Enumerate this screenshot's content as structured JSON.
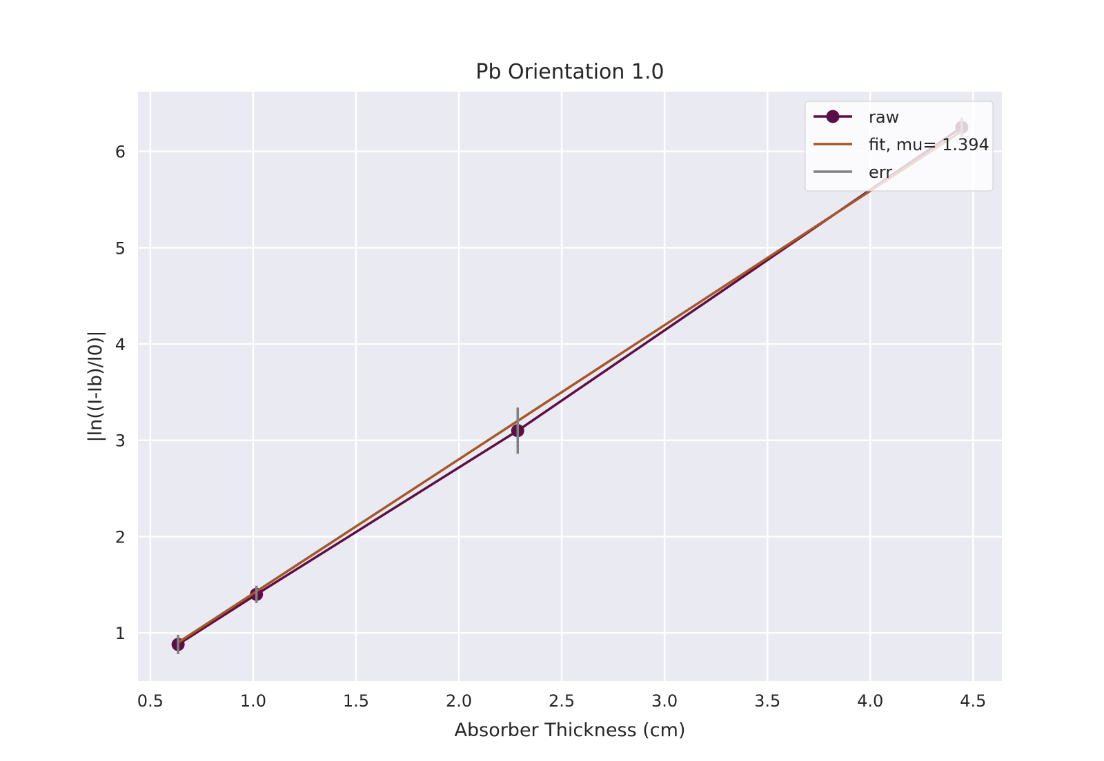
{
  "chart_data": {
    "type": "line",
    "title": "Pb Orientation 1.0",
    "xlabel": "Absorber Thickness (cm)",
    "ylabel": "|ln((I-Ib)/I0)|",
    "xlim": [
      0.44,
      4.64
    ],
    "ylim": [
      0.5,
      6.62
    ],
    "x_ticks": [
      0.5,
      1.0,
      1.5,
      2.0,
      2.5,
      3.0,
      3.5,
      4.0,
      4.5
    ],
    "x_tick_labels": [
      "0.5",
      "1.0",
      "1.5",
      "2.0",
      "2.5",
      "3.0",
      "3.5",
      "4.0",
      "4.5"
    ],
    "y_ticks": [
      1,
      2,
      3,
      4,
      5,
      6
    ],
    "y_tick_labels": [
      "1",
      "2",
      "3",
      "4",
      "5",
      "6"
    ],
    "grid": true,
    "legend_position": "top-right",
    "series": [
      {
        "name": "raw",
        "kind": "line-markers",
        "color": "#5c0f45",
        "x": [
          0.635,
          1.016,
          2.286,
          4.445
        ],
        "y": [
          0.88,
          1.4,
          3.1,
          6.25
        ]
      },
      {
        "name": "fit, mu= 1.394",
        "kind": "line",
        "color": "#a65628",
        "x": [
          0.635,
          4.445
        ],
        "y": [
          0.9,
          6.21
        ]
      },
      {
        "name": "err",
        "kind": "errorbar",
        "color": "#808080",
        "x": [
          0.635,
          1.016,
          2.286,
          4.445
        ],
        "y": [
          0.88,
          1.4,
          3.1,
          6.25
        ],
        "yerr": [
          0.1,
          0.09,
          0.24,
          0.1
        ]
      }
    ],
    "colors": {
      "background": "#ffffff",
      "plot_area": "#eaeaf2",
      "grid": "#ffffff",
      "text": "#262626"
    }
  }
}
